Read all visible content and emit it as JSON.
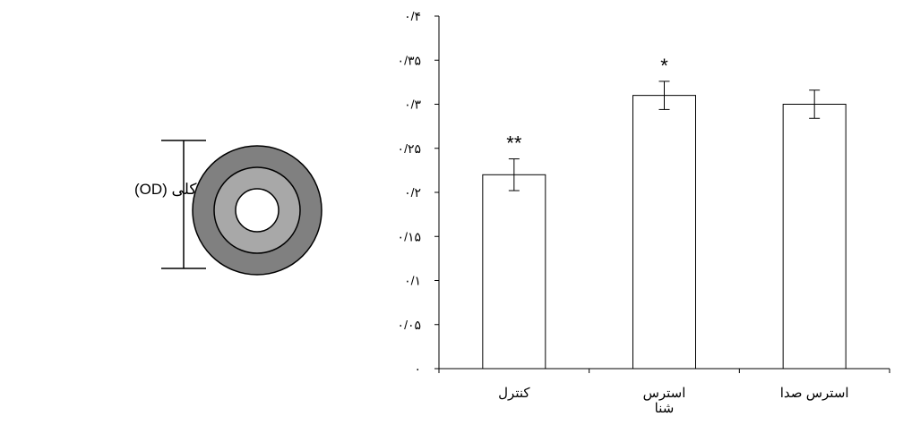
{
  "diagram": {
    "od_label": "قطر کلی (OD)",
    "colors": {
      "outer_ring": "#808080",
      "inner_ring": "#a8a8a8",
      "core": "#ffffff",
      "stroke": "#000000"
    }
  },
  "chart_data": {
    "type": "bar",
    "categories": [
      "کنترل",
      "استرس شنا",
      "استرس صدا"
    ],
    "category_lines": [
      [
        "کنترل"
      ],
      [
        "استرس",
        "شنا"
      ],
      [
        "استرس صدا"
      ]
    ],
    "values": [
      0.22,
      0.31,
      0.3
    ],
    "errors": [
      0.018,
      0.016,
      0.016
    ],
    "significance": [
      "**",
      "*",
      ""
    ],
    "ylim": [
      0,
      0.4
    ],
    "yticks": [
      0,
      0.05,
      0.1,
      0.15,
      0.2,
      0.25,
      0.3,
      0.35,
      0.4
    ],
    "ytick_labels": [
      "۰",
      "۰/۰۵",
      "۰/۱",
      "۰/۱۵",
      "۰/۲",
      "۰/۲۵",
      "۰/۳",
      "۰/۳۵",
      "۰/۴"
    ],
    "title": "",
    "xlabel": "",
    "ylabel": "",
    "bar_fill": "#ffffff",
    "bar_stroke": "#000000",
    "grid": false
  }
}
